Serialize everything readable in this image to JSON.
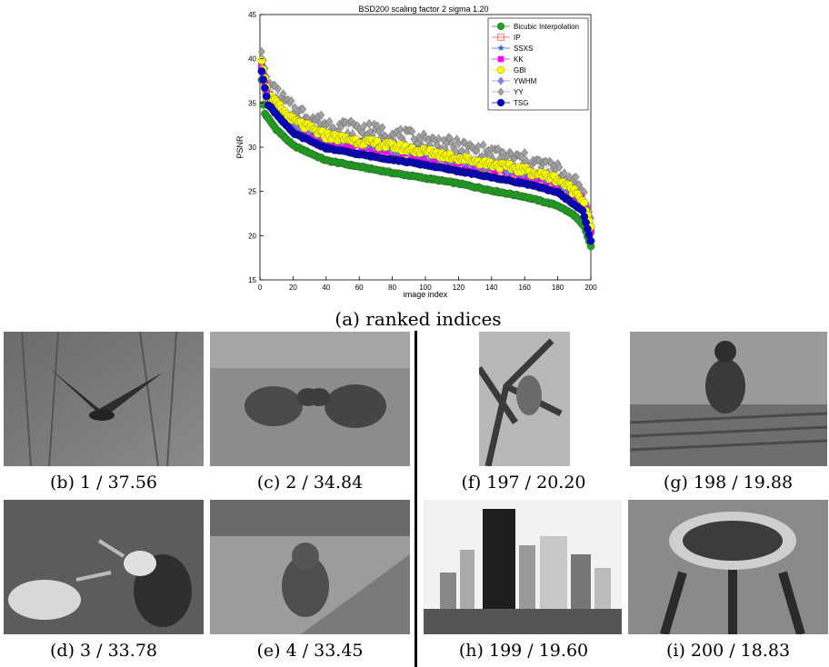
{
  "figure": {
    "main_caption": "(a) ranked indices",
    "panels": [
      {
        "id": "b",
        "caption": "(b) 1 / 37.56"
      },
      {
        "id": "c",
        "caption": "(c) 2 / 34.84"
      },
      {
        "id": "f",
        "caption": "(f) 197 / 20.20"
      },
      {
        "id": "g",
        "caption": "(g) 198 / 19.88"
      },
      {
        "id": "d",
        "caption": "(d) 3 / 33.78"
      },
      {
        "id": "e",
        "caption": "(e) 4 / 33.45"
      },
      {
        "id": "h",
        "caption": "(h) 199 / 19.60"
      },
      {
        "id": "i",
        "caption": "(i) 200 / 18.83"
      }
    ]
  },
  "chart_data": {
    "type": "line",
    "title": "BSD200 scaling factor 2 sigma 1.20",
    "xlabel": "image index",
    "ylabel": "PSNR",
    "xlim": [
      0,
      200
    ],
    "ylim": [
      15,
      45
    ],
    "xticks": [
      "0",
      "20",
      "40",
      "60",
      "80",
      "100",
      "120",
      "140",
      "160",
      "180",
      "200"
    ],
    "yticks": [
      "15",
      "20",
      "25",
      "30",
      "35",
      "40",
      "45"
    ],
    "legend_position": "top-right",
    "grid": false,
    "series": [
      {
        "name": "Bicubic Interpolation",
        "marker": "circle",
        "color": "#1fa51f",
        "keypoints": [
          [
            1,
            37.6
          ],
          [
            2,
            34.8
          ],
          [
            3,
            33.8
          ],
          [
            4,
            33.5
          ],
          [
            10,
            32.0
          ],
          [
            20,
            30.2
          ],
          [
            40,
            28.5
          ],
          [
            60,
            27.8
          ],
          [
            80,
            27.1
          ],
          [
            100,
            26.5
          ],
          [
            120,
            25.9
          ],
          [
            140,
            25.1
          ],
          [
            160,
            24.4
          ],
          [
            180,
            23.4
          ],
          [
            190,
            22.3
          ],
          [
            196,
            21.0
          ],
          [
            200,
            18.8
          ]
        ]
      },
      {
        "name": "IP",
        "marker": "square-open",
        "color": "#ff5050",
        "keypoints": [
          [
            1,
            39.0
          ],
          [
            5,
            35.2
          ],
          [
            20,
            32.5
          ],
          [
            40,
            30.8
          ],
          [
            60,
            30.2
          ],
          [
            80,
            29.6
          ],
          [
            100,
            29.0
          ],
          [
            120,
            28.3
          ],
          [
            140,
            27.6
          ],
          [
            160,
            26.9
          ],
          [
            180,
            25.9
          ],
          [
            195,
            23.8
          ],
          [
            200,
            20.5
          ]
        ]
      },
      {
        "name": "SSXS",
        "marker": "star",
        "color": "#3060d0",
        "keypoints": [
          [
            1,
            39.3
          ],
          [
            5,
            35.5
          ],
          [
            20,
            32.7
          ],
          [
            40,
            31.0
          ],
          [
            60,
            30.4
          ],
          [
            80,
            29.8
          ],
          [
            100,
            29.2
          ],
          [
            120,
            28.5
          ],
          [
            140,
            27.8
          ],
          [
            160,
            27.1
          ],
          [
            180,
            26.1
          ],
          [
            195,
            24.0
          ],
          [
            200,
            20.7
          ]
        ]
      },
      {
        "name": "KK",
        "marker": "square",
        "color": "#ff00ff",
        "keypoints": [
          [
            1,
            39.2
          ],
          [
            5,
            35.4
          ],
          [
            20,
            32.6
          ],
          [
            40,
            30.9
          ],
          [
            60,
            30.3
          ],
          [
            80,
            29.7
          ],
          [
            100,
            29.1
          ],
          [
            120,
            28.4
          ],
          [
            140,
            27.7
          ],
          [
            160,
            27.0
          ],
          [
            180,
            26.0
          ],
          [
            195,
            23.9
          ],
          [
            200,
            20.6
          ]
        ]
      },
      {
        "name": "GBI",
        "marker": "circle",
        "color": "#ffff00",
        "keypoints": [
          [
            1,
            39.8
          ],
          [
            5,
            35.8
          ],
          [
            20,
            33.0
          ],
          [
            40,
            31.3
          ],
          [
            60,
            30.7
          ],
          [
            80,
            30.1
          ],
          [
            100,
            29.5
          ],
          [
            120,
            28.8
          ],
          [
            140,
            28.1
          ],
          [
            160,
            27.4
          ],
          [
            180,
            26.4
          ],
          [
            195,
            24.3
          ],
          [
            200,
            21.0
          ]
        ]
      },
      {
        "name": "YWHM",
        "marker": "diamond",
        "color": "#8080ff",
        "keypoints": [
          [
            1,
            39.5
          ],
          [
            5,
            35.6
          ],
          [
            20,
            32.8
          ],
          [
            40,
            31.1
          ],
          [
            60,
            30.5
          ],
          [
            80,
            29.9
          ],
          [
            100,
            29.3
          ],
          [
            120,
            28.6
          ],
          [
            140,
            27.9
          ],
          [
            160,
            27.2
          ],
          [
            180,
            26.2
          ],
          [
            195,
            24.1
          ],
          [
            200,
            20.8
          ]
        ]
      },
      {
        "name": "YY",
        "marker": "diamond",
        "color": "#a0a0a0",
        "keypoints": [
          [
            1,
            40.8
          ],
          [
            5,
            37.0
          ],
          [
            20,
            34.3
          ],
          [
            40,
            32.7
          ],
          [
            60,
            32.1
          ],
          [
            80,
            31.5
          ],
          [
            100,
            30.8
          ],
          [
            120,
            30.1
          ],
          [
            140,
            29.3
          ],
          [
            160,
            28.6
          ],
          [
            180,
            27.5
          ],
          [
            195,
            25.3
          ],
          [
            200,
            22.0
          ]
        ]
      },
      {
        "name": "TSG",
        "marker": "circle",
        "color": "#0000c0",
        "keypoints": [
          [
            1,
            38.6
          ],
          [
            5,
            34.8
          ],
          [
            20,
            31.6
          ],
          [
            40,
            29.9
          ],
          [
            60,
            29.2
          ],
          [
            80,
            28.6
          ],
          [
            100,
            28.0
          ],
          [
            120,
            27.3
          ],
          [
            140,
            26.6
          ],
          [
            160,
            25.9
          ],
          [
            180,
            24.9
          ],
          [
            195,
            22.8
          ],
          [
            200,
            19.4
          ]
        ]
      }
    ]
  }
}
